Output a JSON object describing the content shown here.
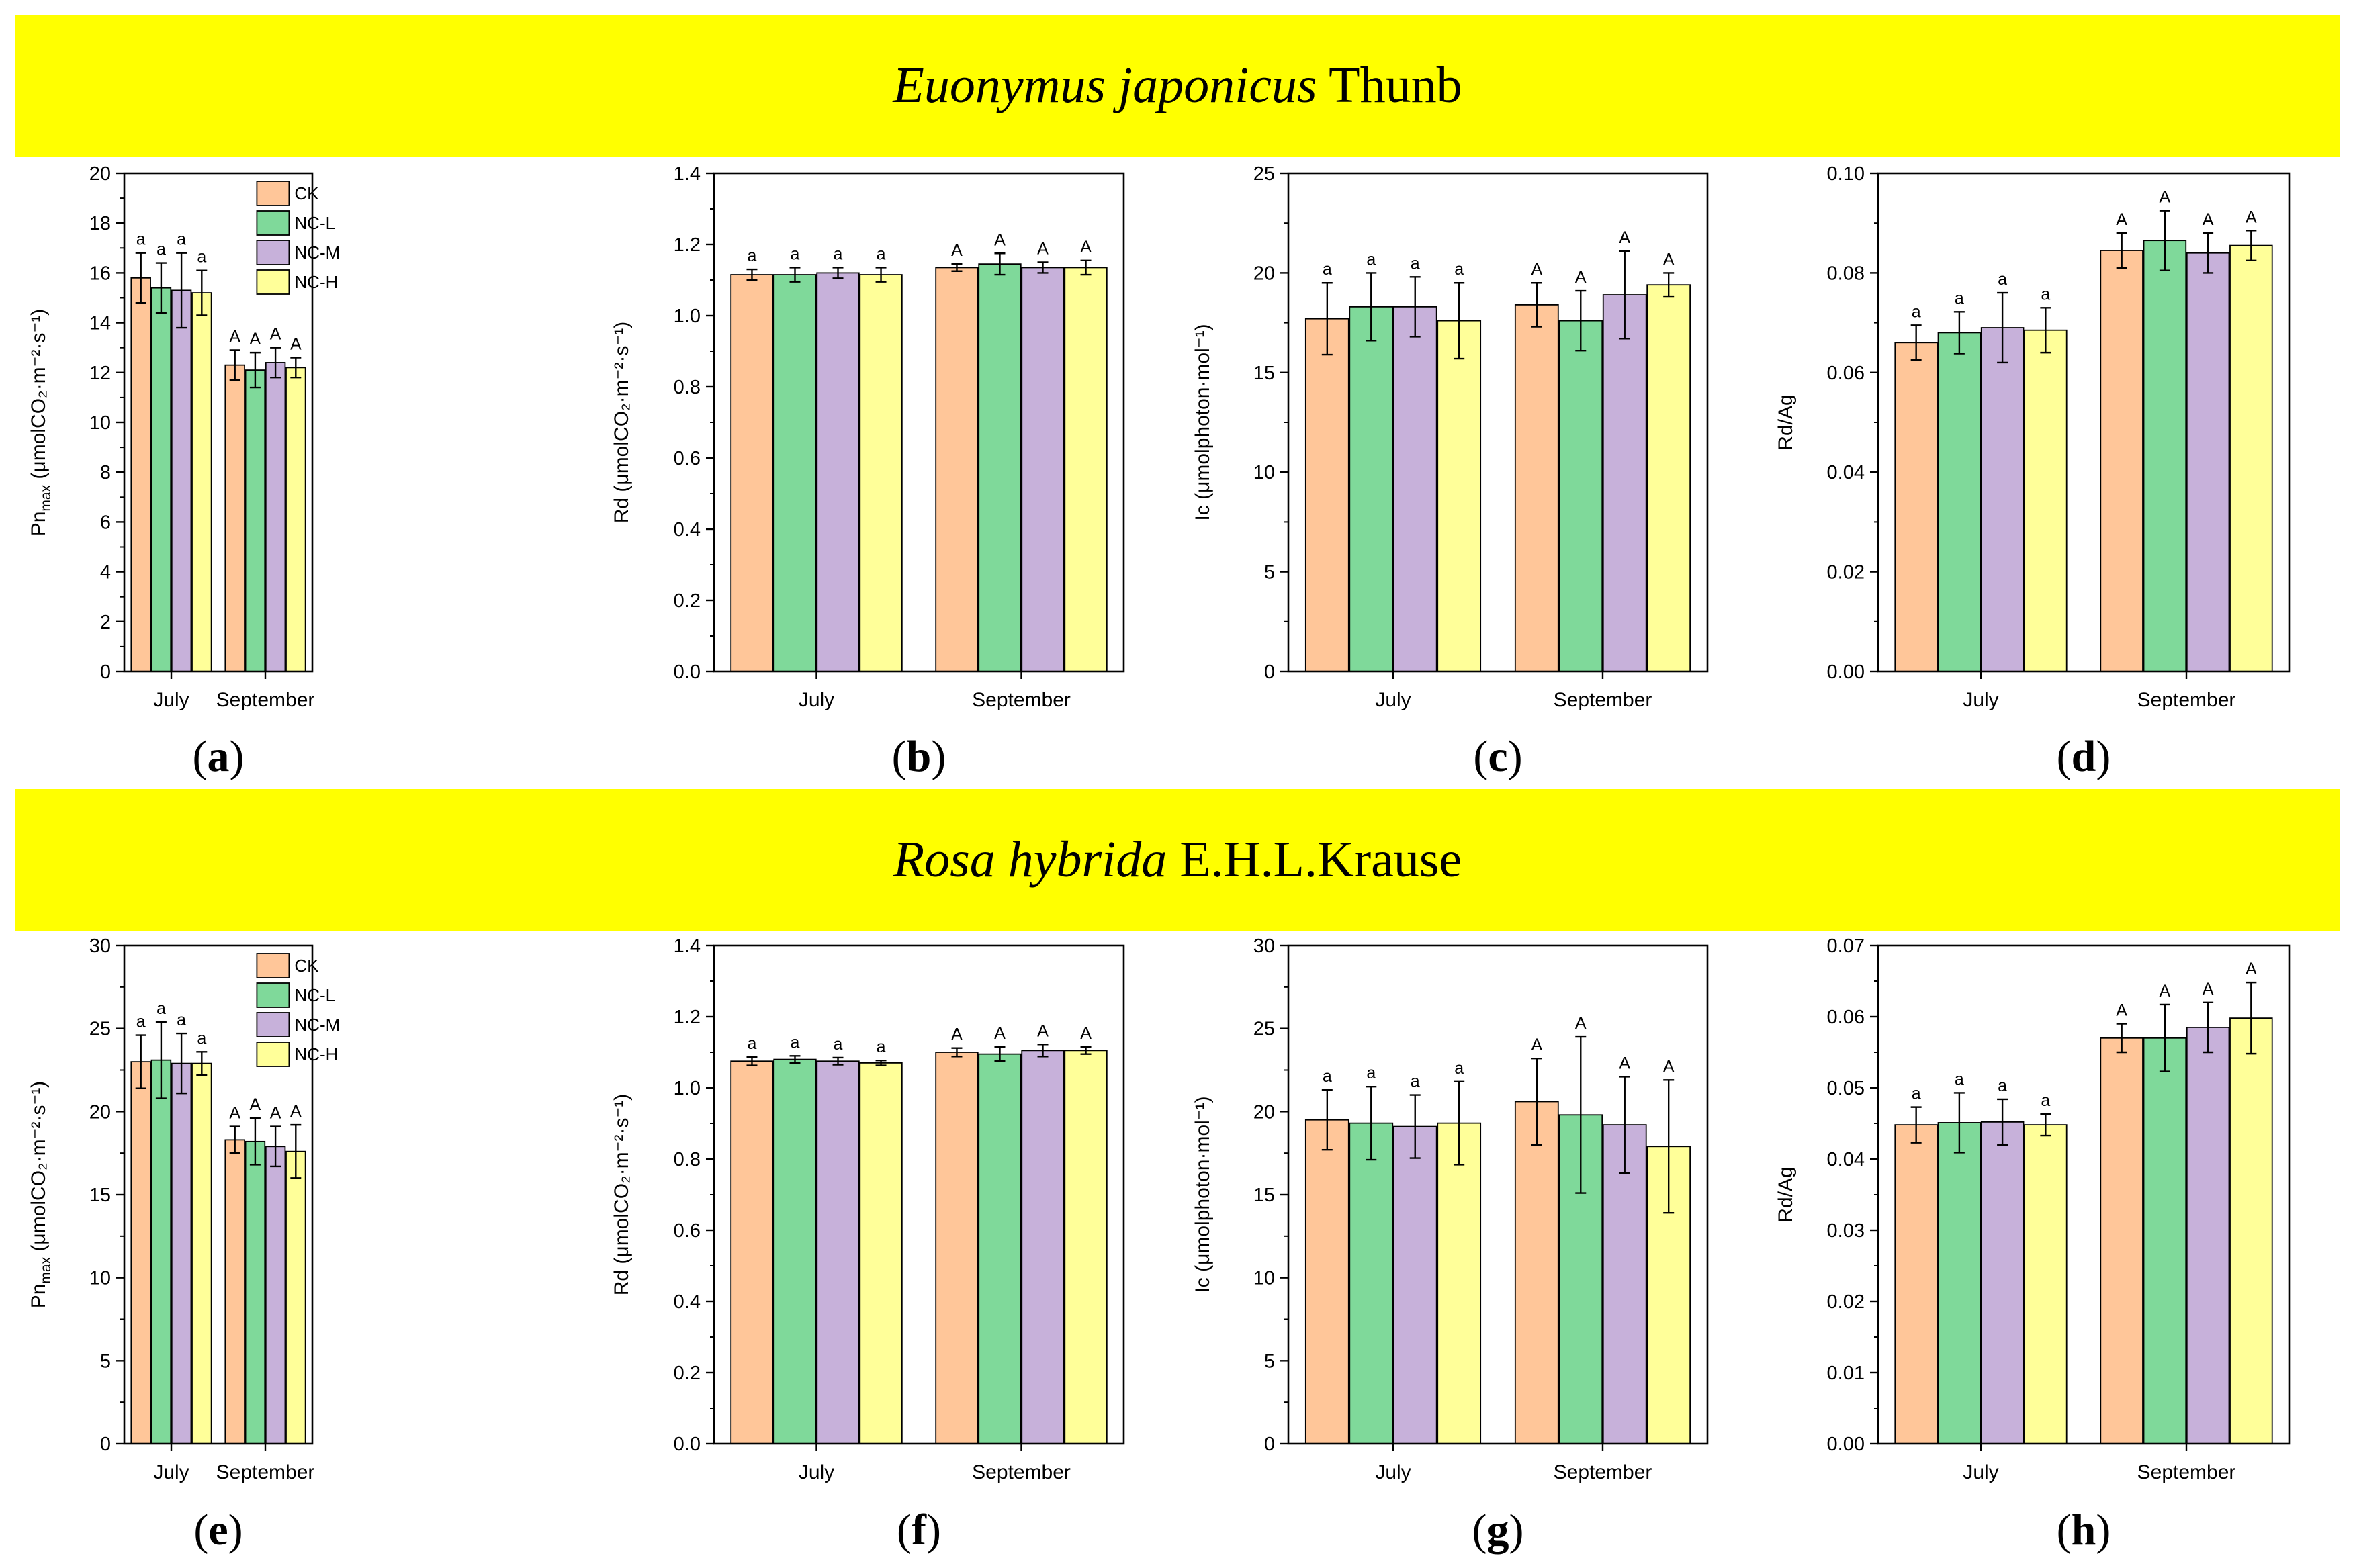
{
  "colors": {
    "banner": "#FFFF00",
    "CK": "#FFC699",
    "NC-L": "#7FD99A",
    "NC-M": "#C7B1DA",
    "NC-H": "#FFFF99"
  },
  "banners": [
    {
      "italic": "Euonymus japonicus",
      "rest": " Thunb"
    },
    {
      "italic": "Rosa hybrida",
      "rest": " E.H.L.Krause"
    }
  ],
  "legend": [
    "CK",
    "NC-L",
    "NC-M",
    "NC-H"
  ],
  "chart_data": [
    {
      "type": "bar",
      "panel": "(a)",
      "label_letter": "a",
      "ylabel_main": "Pn",
      "ylabel_sub": "max",
      "ylabel_rest": " (μmolCO₂·m⁻²·s⁻¹)",
      "ylim": [
        0,
        20
      ],
      "ticks": [
        "0",
        "2",
        "4",
        "6",
        "8",
        "10",
        "12",
        "14",
        "16",
        "18",
        "20"
      ],
      "categories": [
        "July",
        "September"
      ],
      "series": [
        {
          "name": "CK",
          "values": [
            15.8,
            12.3
          ],
          "errors": [
            1.0,
            0.6
          ],
          "letters": [
            "a",
            "A"
          ]
        },
        {
          "name": "NC-L",
          "values": [
            15.4,
            12.1
          ],
          "errors": [
            1.0,
            0.7
          ],
          "letters": [
            "a",
            "A"
          ]
        },
        {
          "name": "NC-M",
          "values": [
            15.3,
            12.4
          ],
          "errors": [
            1.5,
            0.6
          ],
          "letters": [
            "a",
            "A"
          ]
        },
        {
          "name": "NC-H",
          "values": [
            15.2,
            12.2
          ],
          "errors": [
            0.9,
            0.4
          ],
          "letters": [
            "a",
            "A"
          ]
        }
      ],
      "legend": true
    },
    {
      "type": "bar",
      "panel": "(b)",
      "label_letter": "b",
      "ylabel_main": "Rd",
      "ylabel_sub": "",
      "ylabel_rest": " (μmolCO₂·m⁻²·s⁻¹)",
      "ylim": [
        0,
        1.4
      ],
      "ticks": [
        "0.0",
        "0.2",
        "0.4",
        "0.6",
        "0.8",
        "1.0",
        "1.2",
        "1.4"
      ],
      "categories": [
        "July",
        "September"
      ],
      "series": [
        {
          "name": "CK",
          "values": [
            1.115,
            1.135
          ],
          "errors": [
            0.015,
            0.01
          ],
          "letters": [
            "a",
            "A"
          ]
        },
        {
          "name": "NC-L",
          "values": [
            1.115,
            1.145
          ],
          "errors": [
            0.02,
            0.03
          ],
          "letters": [
            "a",
            "A"
          ]
        },
        {
          "name": "NC-M",
          "values": [
            1.12,
            1.135
          ],
          "errors": [
            0.015,
            0.015
          ],
          "letters": [
            "a",
            "A"
          ]
        },
        {
          "name": "NC-H",
          "values": [
            1.115,
            1.135
          ],
          "errors": [
            0.02,
            0.02
          ],
          "letters": [
            "a",
            "A"
          ]
        }
      ],
      "legend": false
    },
    {
      "type": "bar",
      "panel": "(c)",
      "label_letter": "c",
      "ylabel_main": "Ic",
      "ylabel_sub": "",
      "ylabel_rest": " (μmolphoton·mol⁻¹)",
      "ylim": [
        0,
        25
      ],
      "ticks": [
        "0",
        "5",
        "10",
        "15",
        "20",
        "25"
      ],
      "categories": [
        "July",
        "September"
      ],
      "series": [
        {
          "name": "CK",
          "values": [
            17.7,
            18.4
          ],
          "errors": [
            1.8,
            1.1
          ],
          "letters": [
            "a",
            "A"
          ]
        },
        {
          "name": "NC-L",
          "values": [
            18.3,
            17.6
          ],
          "errors": [
            1.7,
            1.5
          ],
          "letters": [
            "a",
            "A"
          ]
        },
        {
          "name": "NC-M",
          "values": [
            18.3,
            18.9
          ],
          "errors": [
            1.5,
            2.2
          ],
          "letters": [
            "a",
            "A"
          ]
        },
        {
          "name": "NC-H",
          "values": [
            17.6,
            19.4
          ],
          "errors": [
            1.9,
            0.6
          ],
          "letters": [
            "a",
            "A"
          ]
        }
      ],
      "legend": false
    },
    {
      "type": "bar",
      "panel": "(d)",
      "label_letter": "d",
      "ylabel_main": "Rd/Ag",
      "ylabel_sub": "",
      "ylabel_rest": "",
      "ylim": [
        0,
        0.1
      ],
      "ticks": [
        "0.00",
        "0.02",
        "0.04",
        "0.06",
        "0.08",
        "0.10"
      ],
      "categories": [
        "July",
        "September"
      ],
      "series": [
        {
          "name": "CK",
          "values": [
            0.066,
            0.0845
          ],
          "errors": [
            0.0035,
            0.0035
          ],
          "letters": [
            "a",
            "A"
          ]
        },
        {
          "name": "NC-L",
          "values": [
            0.068,
            0.0865
          ],
          "errors": [
            0.0042,
            0.006
          ],
          "letters": [
            "a",
            "A"
          ]
        },
        {
          "name": "NC-M",
          "values": [
            0.069,
            0.084
          ],
          "errors": [
            0.007,
            0.004
          ],
          "letters": [
            "a",
            "A"
          ]
        },
        {
          "name": "NC-H",
          "values": [
            0.0685,
            0.0855
          ],
          "errors": [
            0.0045,
            0.003
          ],
          "letters": [
            "a",
            "A"
          ]
        }
      ],
      "legend": false
    },
    {
      "type": "bar",
      "panel": "(e)",
      "label_letter": "e",
      "ylabel_main": "Pn",
      "ylabel_sub": "max",
      "ylabel_rest": " (μmolCO₂·m⁻²·s⁻¹)",
      "ylim": [
        0,
        30
      ],
      "ticks": [
        "0",
        "5",
        "10",
        "15",
        "20",
        "25",
        "30"
      ],
      "categories": [
        "July",
        "September"
      ],
      "series": [
        {
          "name": "CK",
          "values": [
            23.0,
            18.3
          ],
          "errors": [
            1.6,
            0.8
          ],
          "letters": [
            "a",
            "A"
          ]
        },
        {
          "name": "NC-L",
          "values": [
            23.1,
            18.2
          ],
          "errors": [
            2.3,
            1.4
          ],
          "letters": [
            "a",
            "A"
          ]
        },
        {
          "name": "NC-M",
          "values": [
            22.9,
            17.9
          ],
          "errors": [
            1.8,
            1.2
          ],
          "letters": [
            "a",
            "A"
          ]
        },
        {
          "name": "NC-H",
          "values": [
            22.9,
            17.6
          ],
          "errors": [
            0.7,
            1.6
          ],
          "letters": [
            "a",
            "A"
          ]
        }
      ],
      "legend": true
    },
    {
      "type": "bar",
      "panel": "(f)",
      "label_letter": "f",
      "ylabel_main": "Rd",
      "ylabel_sub": "",
      "ylabel_rest": " (μmolCO₂·m⁻²·s⁻¹)",
      "ylim": [
        0,
        1.4
      ],
      "ticks": [
        "0.0",
        "0.2",
        "0.4",
        "0.6",
        "0.8",
        "1.0",
        "1.2",
        "1.4"
      ],
      "categories": [
        "July",
        "September"
      ],
      "series": [
        {
          "name": "CK",
          "values": [
            1.075,
            1.1
          ],
          "errors": [
            0.012,
            0.012
          ],
          "letters": [
            "a",
            "A"
          ]
        },
        {
          "name": "NC-L",
          "values": [
            1.08,
            1.095
          ],
          "errors": [
            0.01,
            0.02
          ],
          "letters": [
            "a",
            "A"
          ]
        },
        {
          "name": "NC-M",
          "values": [
            1.075,
            1.105
          ],
          "errors": [
            0.01,
            0.017
          ],
          "letters": [
            "a",
            "A"
          ]
        },
        {
          "name": "NC-H",
          "values": [
            1.07,
            1.105
          ],
          "errors": [
            0.007,
            0.01
          ],
          "letters": [
            "a",
            "A"
          ]
        }
      ],
      "legend": false
    },
    {
      "type": "bar",
      "panel": "(g)",
      "label_letter": "g",
      "ylabel_main": "Ic",
      "ylabel_sub": "",
      "ylabel_rest": " (μmolphoton·mol⁻¹)",
      "ylim": [
        0,
        30
      ],
      "ticks": [
        "0",
        "5",
        "10",
        "15",
        "20",
        "25",
        "30"
      ],
      "categories": [
        "July",
        "September"
      ],
      "series": [
        {
          "name": "CK",
          "values": [
            19.5,
            20.6
          ],
          "errors": [
            1.8,
            2.6
          ],
          "letters": [
            "a",
            "A"
          ]
        },
        {
          "name": "NC-L",
          "values": [
            19.3,
            19.8
          ],
          "errors": [
            2.2,
            4.7
          ],
          "letters": [
            "a",
            "A"
          ]
        },
        {
          "name": "NC-M",
          "values": [
            19.1,
            19.2
          ],
          "errors": [
            1.9,
            2.9
          ],
          "letters": [
            "a",
            "A"
          ]
        },
        {
          "name": "NC-H",
          "values": [
            19.3,
            17.9
          ],
          "errors": [
            2.5,
            4.0
          ],
          "letters": [
            "a",
            "A"
          ]
        }
      ],
      "legend": false
    },
    {
      "type": "bar",
      "panel": "(h)",
      "label_letter": "h",
      "ylabel_main": "Rd/Ag",
      "ylabel_sub": "",
      "ylabel_rest": "",
      "ylim": [
        0,
        0.07
      ],
      "ticks": [
        "0.00",
        "0.01",
        "0.02",
        "0.03",
        "0.04",
        "0.05",
        "0.06",
        "0.07"
      ],
      "categories": [
        "July",
        "September"
      ],
      "series": [
        {
          "name": "CK",
          "values": [
            0.0448,
            0.057
          ],
          "errors": [
            0.0025,
            0.002
          ],
          "letters": [
            "a",
            "A"
          ]
        },
        {
          "name": "NC-L",
          "values": [
            0.0451,
            0.057
          ],
          "errors": [
            0.0042,
            0.0047
          ],
          "letters": [
            "a",
            "A"
          ]
        },
        {
          "name": "NC-M",
          "values": [
            0.0452,
            0.0585
          ],
          "errors": [
            0.0032,
            0.0035
          ],
          "letters": [
            "a",
            "A"
          ]
        },
        {
          "name": "NC-H",
          "values": [
            0.0448,
            0.0598
          ],
          "errors": [
            0.0015,
            0.005
          ],
          "letters": [
            "a",
            "A"
          ]
        }
      ],
      "legend": false
    }
  ]
}
